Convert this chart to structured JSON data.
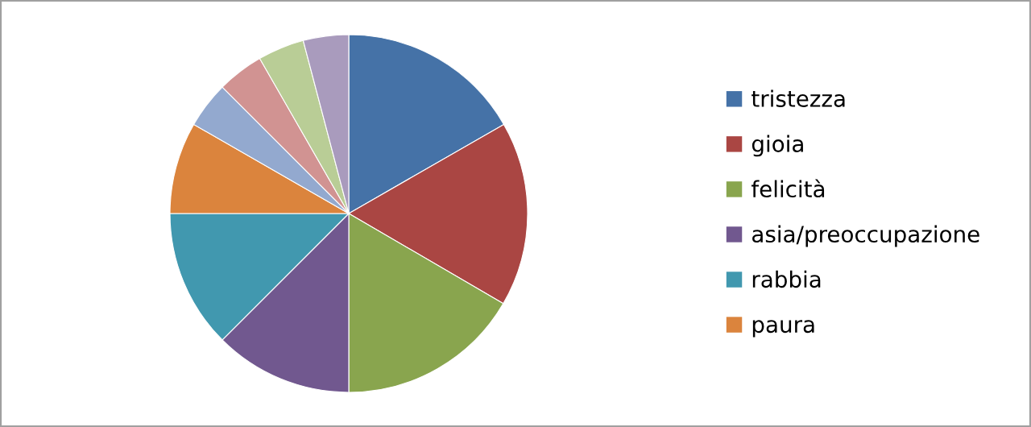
{
  "chart_data": {
    "type": "pie",
    "categories": [
      "tristezza",
      "gioia",
      "felicità",
      "asia/preoccupazione",
      "rabbia",
      "paura",
      null,
      null,
      null,
      null
    ],
    "values": [
      16.7,
      16.7,
      16.6,
      12.5,
      12.5,
      8.3,
      4.2,
      4.2,
      4.2,
      4.1
    ],
    "colors": [
      "#4572a7",
      "#aa4643",
      "#89a54e",
      "#71588f",
      "#4198af",
      "#db843d",
      "#93a9cf",
      "#d19392",
      "#b9cd96",
      "#a99bbd"
    ],
    "legend": "right"
  }
}
